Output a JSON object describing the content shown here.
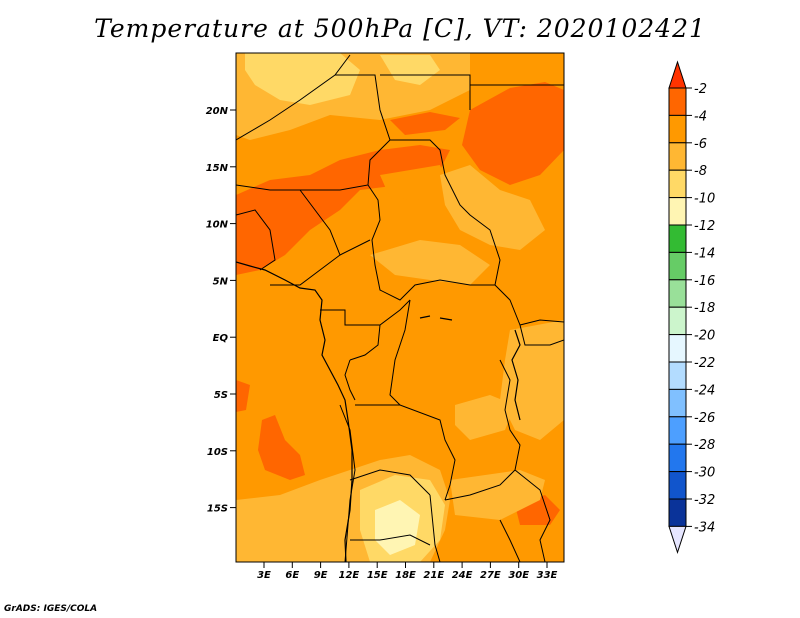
{
  "title": "Temperature at 500hPa [C], VT: 2020102421",
  "credit": "GrADS: IGES/COLA",
  "map": {
    "variable": "Temperature at 500hPa",
    "units": "C",
    "valid_time": "2020102421",
    "lat_ticks": [
      "20N",
      "15N",
      "10N",
      "5N",
      "EQ",
      "5S",
      "10S",
      "15S"
    ],
    "lon_ticks": [
      "3E",
      "6E",
      "9E",
      "12E",
      "15E",
      "18E",
      "21E",
      "24E",
      "27E",
      "30E",
      "33E"
    ],
    "regions": [
      {
        "name": "north-band",
        "level": "-6"
      },
      {
        "name": "sahel-band",
        "level": "-4"
      },
      {
        "name": "northeast-warm-patch",
        "level": "-4"
      },
      {
        "name": "central-basin",
        "level": "-6"
      },
      {
        "name": "southwest-warm-patch",
        "level": "-4"
      },
      {
        "name": "southern-cool-patch",
        "level": "-10"
      }
    ]
  },
  "colorbar": {
    "labels": [
      "-2",
      "-4",
      "-6",
      "-8",
      "-10",
      "-12",
      "-14",
      "-16",
      "-18",
      "-20",
      "-22",
      "-24",
      "-26",
      "-28",
      "-30",
      "-32",
      "-34"
    ],
    "colors": [
      "#ff3300",
      "#ff6600",
      "#ff9900",
      "#ffb733",
      "#ffd966",
      "#fff5b3",
      "#33bb33",
      "#66cc66",
      "#99e099",
      "#ccf5cc",
      "#e6f7ff",
      "#b3dcff",
      "#80c0ff",
      "#4d9fff",
      "#2277ee",
      "#1155cc",
      "#0a3399",
      "#001166"
    ],
    "top_color": "#ff3300",
    "bottom_color": "#e6e6ff"
  }
}
